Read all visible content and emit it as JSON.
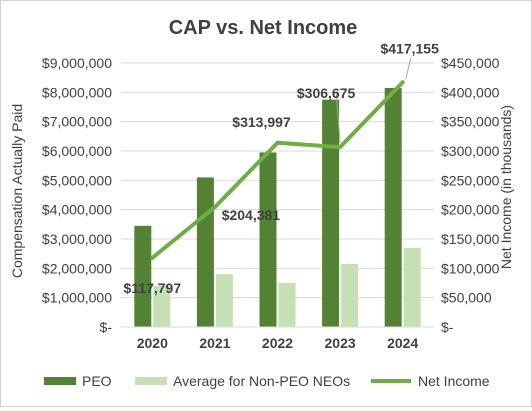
{
  "chart_data": {
    "type": "bar",
    "title": "CAP vs. Net Income",
    "categories": [
      "2020",
      "2021",
      "2022",
      "2023",
      "2024"
    ],
    "series": [
      {
        "name": "PEO",
        "type": "bar",
        "axis": "left",
        "color": "#548235",
        "values": [
          3450000,
          5100000,
          5950000,
          7750000,
          8150000
        ]
      },
      {
        "name": "Average for Non-PEO NEOs",
        "type": "bar",
        "axis": "left",
        "color": "#c5e0b4",
        "values": [
          1400000,
          1800000,
          1500000,
          2150000,
          2700000
        ]
      },
      {
        "name": "Net Income",
        "type": "line",
        "axis": "right",
        "color": "#70ad47",
        "values": [
          117797,
          204381,
          313997,
          306675,
          417155
        ]
      }
    ],
    "data_labels": [
      "$117,797",
      "$204,381",
      "$313,997",
      "$306,675",
      "$417,155"
    ],
    "ylabel": "Compensation Actually Paid",
    "y2label": "Net Income (in thousands)",
    "ylim": [
      0,
      9000000
    ],
    "y2lim": [
      0,
      450000
    ],
    "y_ticks": [
      "$-",
      "$1,000,000",
      "$2,000,000",
      "$3,000,000",
      "$4,000,000",
      "$5,000,000",
      "$6,000,000",
      "$7,000,000",
      "$8,000,000",
      "$9,000,000"
    ],
    "y2_ticks": [
      "$-",
      "$50,000",
      "$100,000",
      "$150,000",
      "$200,000",
      "$250,000",
      "$300,000",
      "$350,000",
      "$400,000",
      "$450,000"
    ],
    "grid": true,
    "legend_position": "bottom"
  }
}
